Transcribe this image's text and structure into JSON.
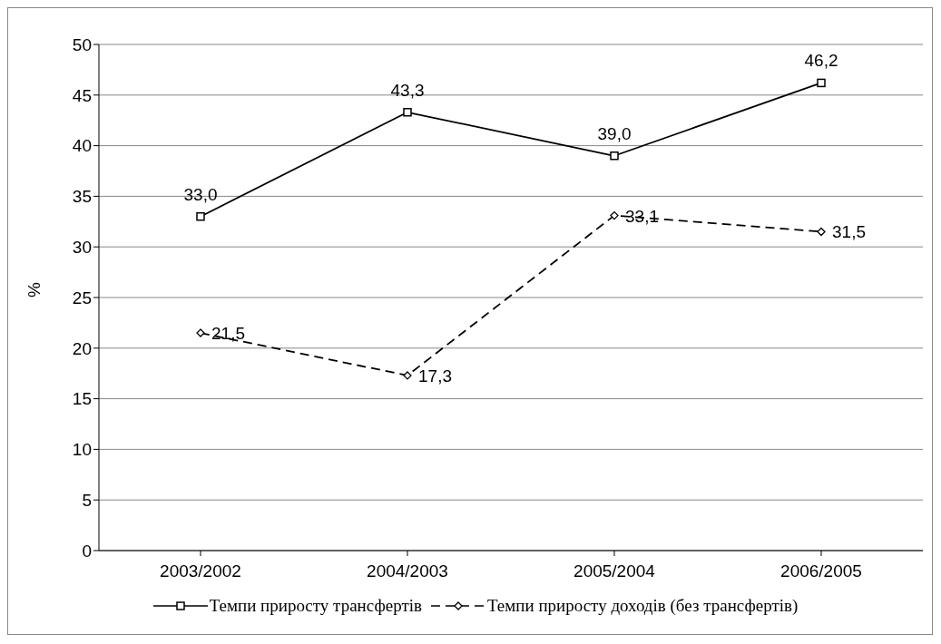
{
  "chart_data": {
    "type": "line",
    "ylabel": "%",
    "categories": [
      "2003/2002",
      "2004/2003",
      "2005/2004",
      "2006/2005"
    ],
    "series": [
      {
        "name": "Темпи приросту трансфертів",
        "color": "#000000",
        "values": [
          33.0,
          43.3,
          39.0,
          46.2
        ],
        "value_labels": [
          "33,0",
          "43,3",
          "39,0",
          "46,2"
        ],
        "marker": "square",
        "line_style": "solid"
      },
      {
        "name": "Темпи приросту доходів (без трансфертів)",
        "color": "#000000",
        "values": [
          21.5,
          17.3,
          33.1,
          31.5
        ],
        "value_labels": [
          "21,5",
          "17,3",
          "33,1",
          "31,5"
        ],
        "marker": "diamond",
        "line_style": "dashed"
      }
    ],
    "ylim": [
      0,
      50
    ],
    "yticks": [
      0,
      5,
      10,
      15,
      20,
      25,
      30,
      35,
      40,
      45,
      50
    ],
    "grid": "y",
    "legend": "bottom"
  }
}
